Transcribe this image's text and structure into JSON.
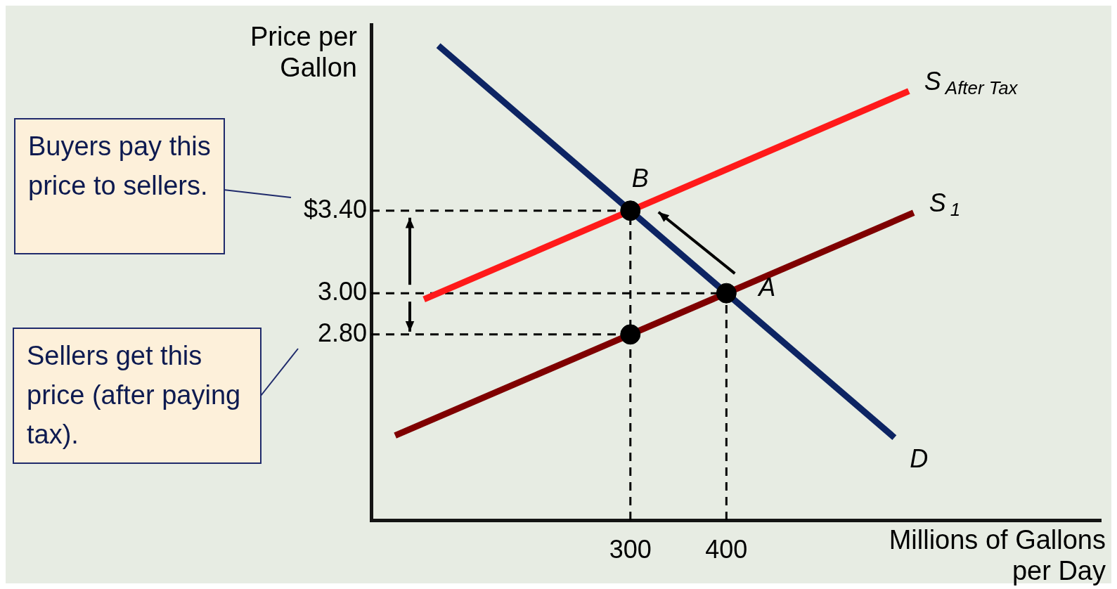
{
  "chart_data": {
    "type": "line",
    "xlabel": "Millions of Gallons per Day",
    "ylabel": "Price per Gallon",
    "xlim": [
      30,
      790
    ],
    "ylim": [
      1.9,
      4.3
    ],
    "xticks": [
      300,
      400
    ],
    "yticks": [
      {
        "value": 2.8,
        "label": "2.80"
      },
      {
        "value": 3.0,
        "label": "3.00"
      },
      {
        "value": 3.4,
        "label": "$3.40"
      }
    ],
    "grid": false,
    "legend": false,
    "series": [
      {
        "name": "S$_{After Tax}$",
        "color": "#ff1a1a",
        "x": [
          85,
          590
        ],
        "values": [
          2.97,
          3.98
        ]
      },
      {
        "name": "S$_{1}$",
        "color": "#7f0000",
        "x": [
          55,
          595
        ],
        "values": [
          2.31,
          3.39
        ]
      },
      {
        "name": "D",
        "color": "#0d2463",
        "x": [
          100,
          575
        ],
        "values": [
          4.2,
          2.3
        ]
      },
      {
        "color": "#000000",
        "line_style": "dashed",
        "x": [
          30,
          300
        ],
        "values": [
          3.4,
          3.4
        ]
      },
      {
        "color": "#000000",
        "line_style": "dashed",
        "x": [
          30,
          400
        ],
        "values": [
          3.0,
          3.0
        ]
      },
      {
        "color": "#000000",
        "line_style": "dashed",
        "x": [
          30,
          300
        ],
        "values": [
          2.8,
          2.8
        ]
      },
      {
        "color": "#000000",
        "line_style": "dashed",
        "x": [
          300,
          300
        ],
        "values": [
          1.9,
          3.4
        ]
      },
      {
        "color": "#000000",
        "line_style": "dashed",
        "x": [
          400,
          400
        ],
        "values": [
          1.9,
          3.0
        ]
      },
      {
        "type": "scatter",
        "color": "#000000",
        "marker": "circle",
        "x": [
          300,
          400,
          300
        ],
        "values": [
          3.4,
          3.0,
          2.8
        ]
      }
    ],
    "annotations": [
      {
        "text": "B",
        "x": 300,
        "y": 3.4
      },
      {
        "text": "A",
        "x": 400,
        "y": 3.0
      },
      "Buyers pay this price to sellers.",
      "Sellers get this price (after paying tax)."
    ]
  }
}
